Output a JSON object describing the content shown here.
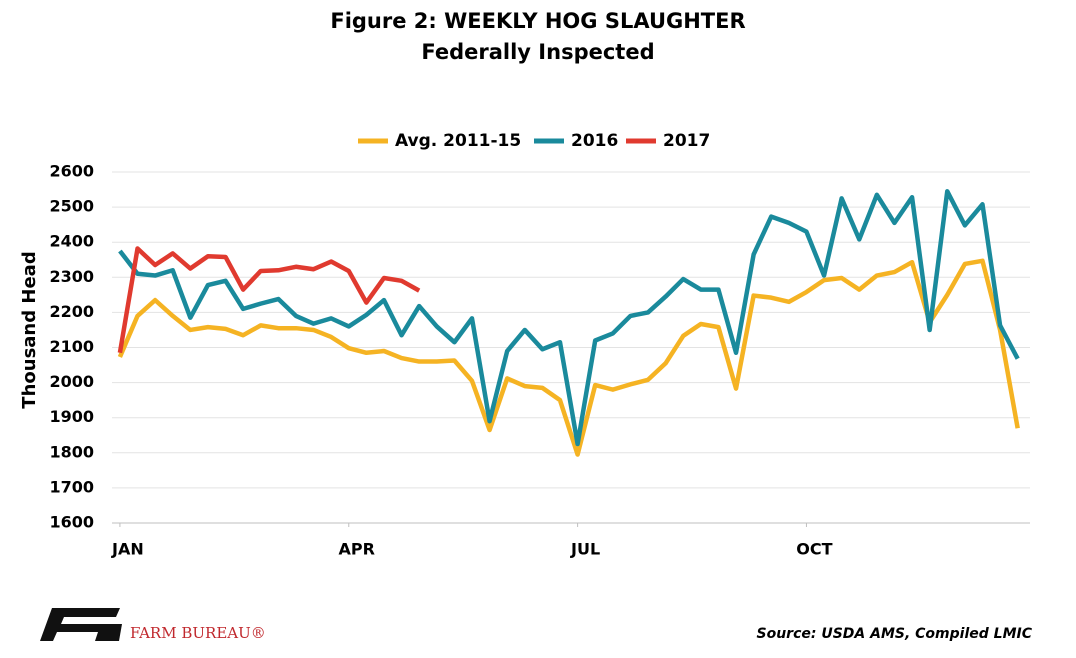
{
  "chart_data": {
    "type": "line",
    "title": "Figure 2: WEEKLY HOG SLAUGHTER",
    "subtitle": "Federally Inspected",
    "y_label": "Thousand Head",
    "source": "Source: USDA AMS, Compiled LMIC",
    "brand": "FARM BUREAU®",
    "x": [
      1,
      2,
      3,
      4,
      5,
      6,
      7,
      8,
      9,
      10,
      11,
      12,
      13,
      14,
      15,
      16,
      17,
      18,
      19,
      20,
      21,
      22,
      23,
      24,
      25,
      26,
      27,
      28,
      29,
      30,
      31,
      32,
      33,
      34,
      35,
      36,
      37,
      38,
      39,
      40,
      41,
      42,
      43,
      44,
      45,
      46,
      47,
      48,
      49,
      50,
      51,
      52
    ],
    "xlim": [
      0.55,
      52.7
    ],
    "xticks": [
      {
        "value": 1,
        "label": "JAN"
      },
      {
        "value": 14,
        "label": "APR"
      },
      {
        "value": 27,
        "label": "JUL"
      },
      {
        "value": 40,
        "label": "OCT"
      }
    ],
    "ylim": [
      1600,
      2600
    ],
    "yticks": [
      1600,
      1700,
      1800,
      1900,
      2000,
      2100,
      2200,
      2300,
      2400,
      2500,
      2600
    ],
    "grid": true,
    "legend": "top",
    "series": [
      {
        "name": "Avg. 2011-15",
        "color": "#f5b323",
        "values": [
          2073,
          2190,
          2235,
          2190,
          2150,
          2158,
          2153,
          2135,
          2163,
          2155,
          2155,
          2150,
          2130,
          2098,
          2085,
          2090,
          2070,
          2060,
          2060,
          2063,
          2005,
          1865,
          2012,
          1990,
          1985,
          1950,
          1795,
          1993,
          1980,
          1995,
          2008,
          2055,
          2133,
          2167,
          2158,
          1983,
          2248,
          2242,
          2230,
          2258,
          2292,
          2298,
          2265,
          2305,
          2315,
          2343,
          2172,
          2250,
          2338,
          2347,
          2150,
          1870
        ]
      },
      {
        "name": "2016",
        "color": "#1a8a9c",
        "values": [
          2375,
          2310,
          2305,
          2320,
          2185,
          2278,
          2290,
          2210,
          2225,
          2238,
          2190,
          2168,
          2183,
          2160,
          2193,
          2235,
          2135,
          2218,
          2160,
          2115,
          2183,
          1890,
          2090,
          2150,
          2095,
          2115,
          1825,
          2120,
          2140,
          2190,
          2200,
          2245,
          2295,
          2265,
          2265,
          2085,
          2365,
          2473,
          2455,
          2430,
          2305,
          2525,
          2408,
          2535,
          2455,
          2528,
          2150,
          2545,
          2448,
          2508,
          2163,
          2068
        ]
      },
      {
        "name": "2017",
        "color": "#e03a2f",
        "values": [
          2085,
          2382,
          2335,
          2368,
          2325,
          2360,
          2358,
          2265,
          2318,
          2320,
          2330,
          2323,
          2345,
          2318,
          2228,
          2298,
          2290,
          2262,
          null,
          null,
          null,
          null,
          null,
          null,
          null,
          null,
          null,
          null,
          null,
          null,
          null,
          null,
          null,
          null,
          null,
          null,
          null,
          null,
          null,
          null,
          null,
          null,
          null,
          null,
          null,
          null,
          null,
          null,
          null,
          null,
          null,
          null
        ]
      }
    ]
  }
}
